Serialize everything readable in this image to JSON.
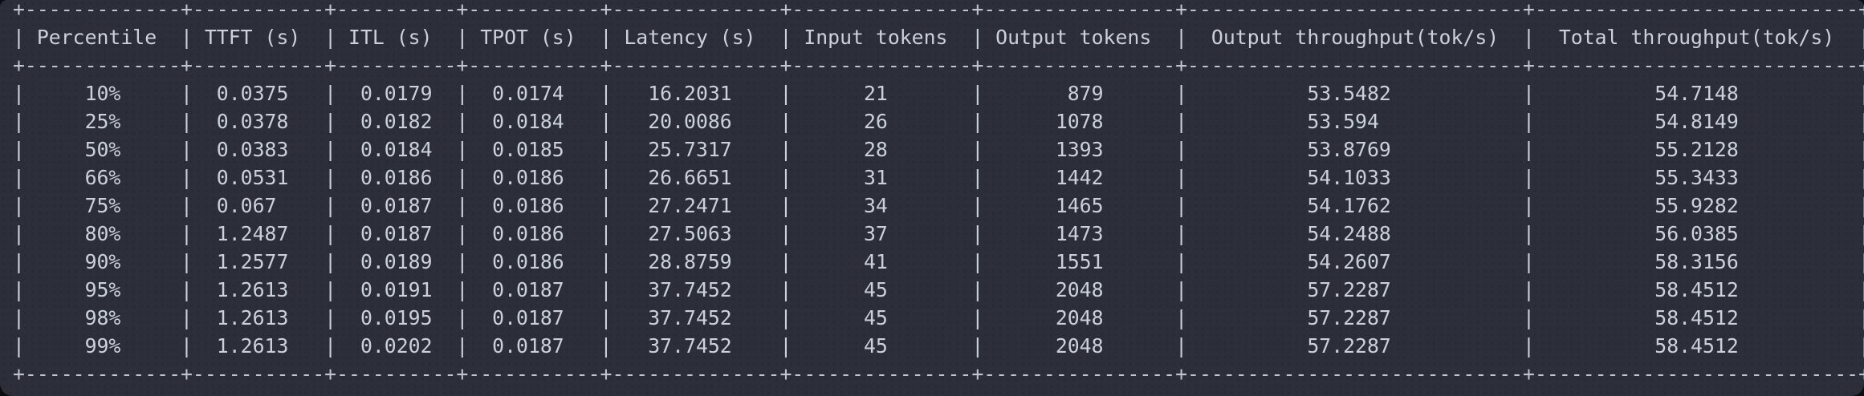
{
  "terminal": {
    "kind": "benchmark-percentile-table",
    "colors": {
      "background": "#2c2f3a",
      "text": "#cbd1da",
      "frame": "#bec5d0",
      "outside": "#0c0d11"
    },
    "table": {
      "headers": [
        "Percentile",
        "TTFT (s)",
        "ITL (s)",
        "TPOT (s)",
        "Latency (s)",
        "Input tokens",
        "Output tokens",
        "Output throughput(tok/s)",
        "Total throughput(tok/s)"
      ],
      "rows": [
        [
          "10%",
          "0.0375",
          "0.0179",
          "0.0174",
          "16.2031",
          "21",
          "879",
          "53.5482",
          "54.7148"
        ],
        [
          "25%",
          "0.0378",
          "0.0182",
          "0.0184",
          "20.0086",
          "26",
          "1078",
          "53.594",
          "54.8149"
        ],
        [
          "50%",
          "0.0383",
          "0.0184",
          "0.0185",
          "25.7317",
          "28",
          "1393",
          "53.8769",
          "55.2128"
        ],
        [
          "66%",
          "0.0531",
          "0.0186",
          "0.0186",
          "26.6651",
          "31",
          "1442",
          "54.1033",
          "55.3433"
        ],
        [
          "75%",
          "0.067",
          "0.0187",
          "0.0186",
          "27.2471",
          "34",
          "1465",
          "54.1762",
          "55.9282"
        ],
        [
          "80%",
          "1.2487",
          "0.0187",
          "0.0186",
          "27.5063",
          "37",
          "1473",
          "54.2488",
          "56.0385"
        ],
        [
          "90%",
          "1.2577",
          "0.0189",
          "0.0186",
          "28.8759",
          "41",
          "1551",
          "54.2607",
          "58.3156"
        ],
        [
          "95%",
          "1.2613",
          "0.0191",
          "0.0187",
          "37.7452",
          "45",
          "2048",
          "57.2287",
          "58.4512"
        ],
        [
          "98%",
          "1.2613",
          "0.0195",
          "0.0187",
          "37.7452",
          "45",
          "2048",
          "57.2287",
          "58.4512"
        ],
        [
          "99%",
          "1.2613",
          "0.0202",
          "0.0187",
          "37.7452",
          "45",
          "2048",
          "57.2287",
          "58.4512"
        ]
      ]
    }
  }
}
